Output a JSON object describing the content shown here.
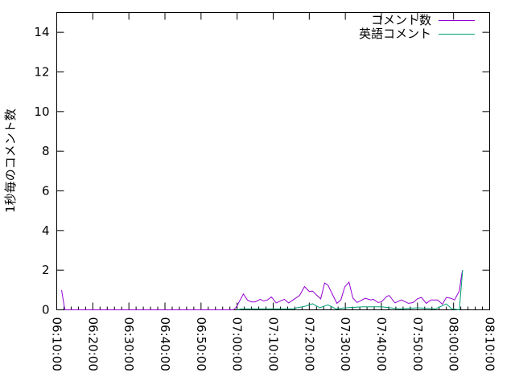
{
  "chart_data": {
    "type": "line",
    "title": "",
    "xlabel": "",
    "ylabel": "1秒毎のコメント数",
    "xlim": [
      "06:10:00",
      "08:10:00"
    ],
    "ylim": [
      0,
      15
    ],
    "x_ticks": [
      "06:10:00",
      "06:20:00",
      "06:30:00",
      "06:40:00",
      "06:50:00",
      "07:00:00",
      "07:10:00",
      "07:20:00",
      "07:30:00",
      "07:40:00",
      "07:50:00",
      "08:00:00",
      "08:10:00"
    ],
    "y_ticks": [
      "0",
      "2",
      "4",
      "6",
      "8",
      "10",
      "12",
      "14"
    ],
    "grid": false,
    "legend_position": "top-right",
    "series": [
      {
        "name": "コメント数",
        "color": "#9400d3",
        "points": [
          [
            "06:11:20",
            1.0
          ],
          [
            "06:12:15",
            0
          ],
          [
            "06:55:45",
            0
          ],
          [
            "06:59:00",
            0
          ],
          [
            "06:59:45",
            0.13
          ],
          [
            "07:01:45",
            0.8
          ],
          [
            "07:02:50",
            0.5
          ],
          [
            "07:03:55",
            0.4
          ],
          [
            "07:05:00",
            0.4
          ],
          [
            "07:06:25",
            0.53
          ],
          [
            "07:07:15",
            0.45
          ],
          [
            "07:08:25",
            0.5
          ],
          [
            "07:09:30",
            0.65
          ],
          [
            "07:10:50",
            0.35
          ],
          [
            "07:12:00",
            0.45
          ],
          [
            "07:13:05",
            0.53
          ],
          [
            "07:14:15",
            0.35
          ],
          [
            "07:15:45",
            0.53
          ],
          [
            "07:17:20",
            0.73
          ],
          [
            "07:18:40",
            1.17
          ],
          [
            "07:20:00",
            0.93
          ],
          [
            "07:20:55",
            0.95
          ],
          [
            "07:22:00",
            0.75
          ],
          [
            "07:23:10",
            0.55
          ],
          [
            "07:24:15",
            1.35
          ],
          [
            "07:25:10",
            1.25
          ],
          [
            "07:26:30",
            0.75
          ],
          [
            "07:27:40",
            0.33
          ],
          [
            "07:28:45",
            0.5
          ],
          [
            "07:29:50",
            1.15
          ],
          [
            "07:31:00",
            1.4
          ],
          [
            "07:32:05",
            0.6
          ],
          [
            "07:33:15",
            0.37
          ],
          [
            "07:35:30",
            0.58
          ],
          [
            "07:37:05",
            0.5
          ],
          [
            "07:37:45",
            0.53
          ],
          [
            "07:39:05",
            0.37
          ],
          [
            "07:40:00",
            0.4
          ],
          [
            "07:41:30",
            0.68
          ],
          [
            "07:42:10",
            0.72
          ],
          [
            "07:43:45",
            0.35
          ],
          [
            "07:45:30",
            0.5
          ],
          [
            "07:47:30",
            0.33
          ],
          [
            "07:48:50",
            0.37
          ],
          [
            "07:49:55",
            0.55
          ],
          [
            "07:51:05",
            0.63
          ],
          [
            "07:52:25",
            0.33
          ],
          [
            "07:53:45",
            0.5
          ],
          [
            "07:55:35",
            0.5
          ],
          [
            "07:56:55",
            0.28
          ],
          [
            "07:58:00",
            0.63
          ],
          [
            "07:59:20",
            0.58
          ],
          [
            "08:00:15",
            0.5
          ],
          [
            "08:01:35",
            0.95
          ],
          [
            "08:02:15",
            1.8
          ],
          [
            "08:02:30",
            2.0
          ]
        ]
      },
      {
        "name": "英語コメント",
        "color": "#009e73",
        "points": [
          [
            "07:00:00",
            0
          ],
          [
            "07:01:20",
            0.05
          ],
          [
            "07:15:45",
            0.05
          ],
          [
            "07:16:30",
            0.1
          ],
          [
            "07:18:40",
            0.17
          ],
          [
            "07:20:55",
            0.31
          ],
          [
            "07:22:55",
            0.1
          ],
          [
            "07:25:10",
            0.25
          ],
          [
            "07:27:25",
            0.05
          ],
          [
            "07:30:00",
            0.1
          ],
          [
            "07:35:00",
            0.15
          ],
          [
            "07:40:00",
            0.15
          ],
          [
            "07:45:00",
            0.05
          ],
          [
            "07:50:00",
            0.1
          ],
          [
            "07:55:00",
            0.05
          ],
          [
            "07:58:00",
            0.3
          ],
          [
            "07:59:30",
            0.05
          ],
          [
            "08:01:35",
            0
          ],
          [
            "08:02:30",
            2.0
          ]
        ]
      }
    ]
  }
}
